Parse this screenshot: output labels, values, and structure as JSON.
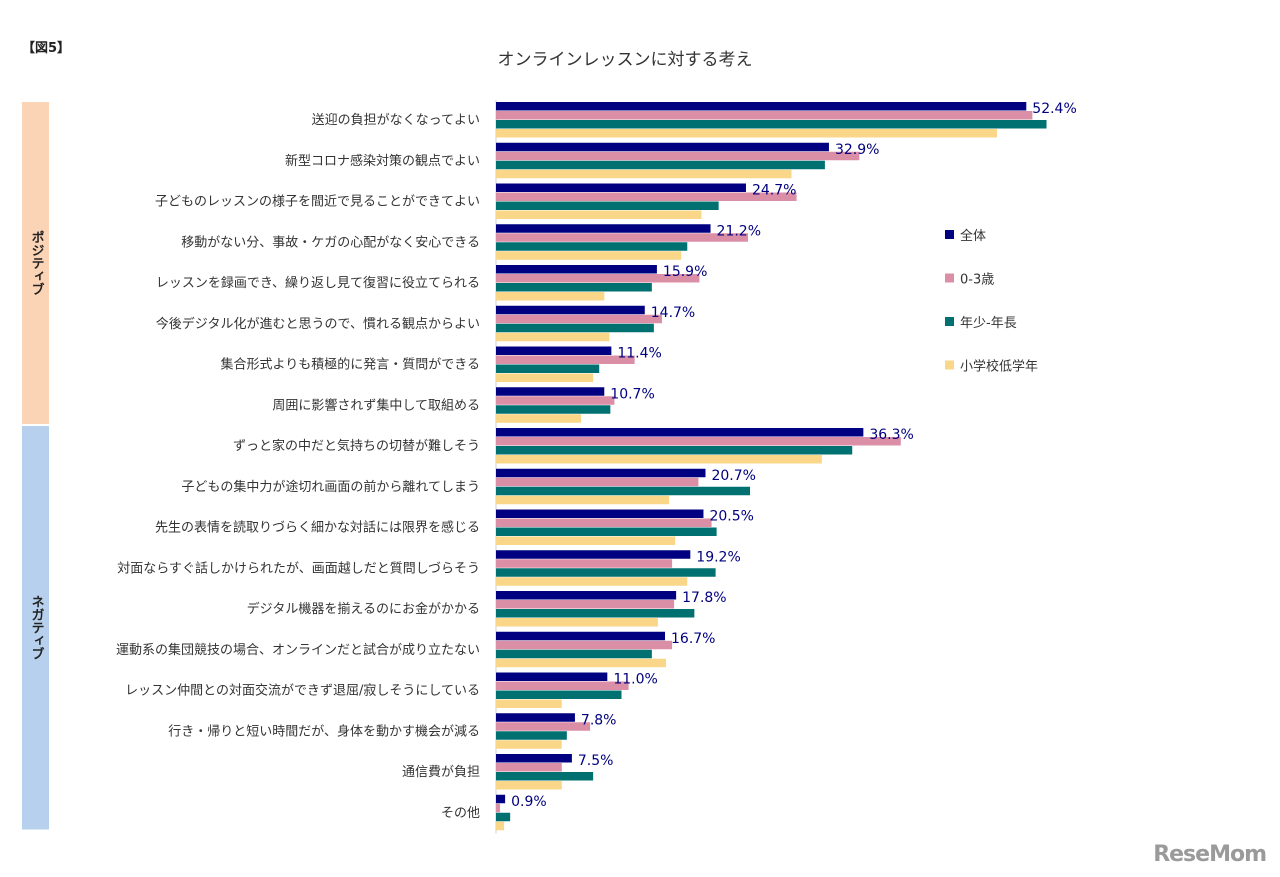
{
  "figure_label": "【図5】",
  "logo": "ReseMom",
  "chart_data": {
    "type": "bar",
    "orientation": "horizontal",
    "title": "オンラインレッスンに対する考え",
    "groups": [
      {
        "label": "ポジティブ",
        "color": "#FBD3B5",
        "count": 8
      },
      {
        "label": "ネガティブ",
        "color": "#B6D0EE",
        "count": 10
      }
    ],
    "categories": [
      "送迎の負担がなくなってよい",
      "新型コロナ感染対策の観点でよい",
      "子どものレッスンの様子を間近で見ることができてよい",
      "移動がない分、事故・ケガの心配がなく安心できる",
      "レッスンを録画でき、繰り返し見て復習に役立てられる",
      "今後デジタル化が進むと思うので、慣れる観点からよい",
      "集合形式よりも積極的に発言・質問ができる",
      "周囲に影響されず集中して取組める",
      "ずっと家の中だと気持ちの切替が難しそう",
      "子どもの集中力が途切れ画面の前から離れてしまう",
      "先生の表情を読取りづらく細かな対話には限界を感じる",
      "対面ならすぐ話しかけられたが、画面越しだと質問しづらそう",
      "デジタル機器を揃えるのにお金がかかる",
      "運動系の集団競技の場合、オンラインだと試合が成り立たない",
      "レッスン仲間との対面交流ができず退屈/寂しそうにしている",
      "行き・帰りと短い時間だが、身体を動かす機会が減る",
      "通信費が負担",
      "その他"
    ],
    "series": [
      {
        "name": "全体",
        "color": "#000080",
        "labeled": true,
        "values": [
          52.4,
          32.9,
          24.7,
          21.2,
          15.9,
          14.7,
          11.4,
          10.7,
          36.3,
          20.7,
          20.5,
          19.2,
          17.8,
          16.7,
          11.0,
          7.8,
          7.5,
          0.9
        ]
      },
      {
        "name": "0-3歳",
        "color": "#DB8FA6",
        "labeled": false,
        "values": [
          53.0,
          35.9,
          29.7,
          24.9,
          20.1,
          16.4,
          13.7,
          11.7,
          40.0,
          20.0,
          21.3,
          17.4,
          17.6,
          17.4,
          13.1,
          9.3,
          6.5,
          0.4
        ]
      },
      {
        "name": "年少-年長",
        "color": "#007070",
        "labeled": false,
        "values": [
          54.4,
          32.5,
          22.0,
          18.9,
          15.4,
          15.6,
          10.2,
          11.3,
          35.2,
          25.1,
          21.8,
          21.7,
          19.6,
          15.4,
          12.4,
          7.0,
          9.6,
          1.4
        ]
      },
      {
        "name": "小学校低学年",
        "color": "#FAD689",
        "labeled": false,
        "values": [
          49.5,
          29.2,
          20.3,
          18.3,
          10.7,
          11.2,
          9.6,
          8.4,
          32.2,
          17.1,
          17.7,
          18.9,
          16.0,
          16.8,
          6.5,
          6.5,
          6.5,
          0.8
        ]
      }
    ],
    "value_labels": [
      "52.4%",
      "32.9%",
      "24.7%",
      "21.2%",
      "15.9%",
      "14.7%",
      "11.4%",
      "10.7%",
      "36.3%",
      "20.7%",
      "20.5%",
      "19.2%",
      "17.8%",
      "16.7%",
      "11.0%",
      "7.8%",
      "7.5%",
      "0.9%"
    ],
    "xlim": [
      0,
      60
    ],
    "unit": "%",
    "grid": false,
    "legend": "right"
  }
}
